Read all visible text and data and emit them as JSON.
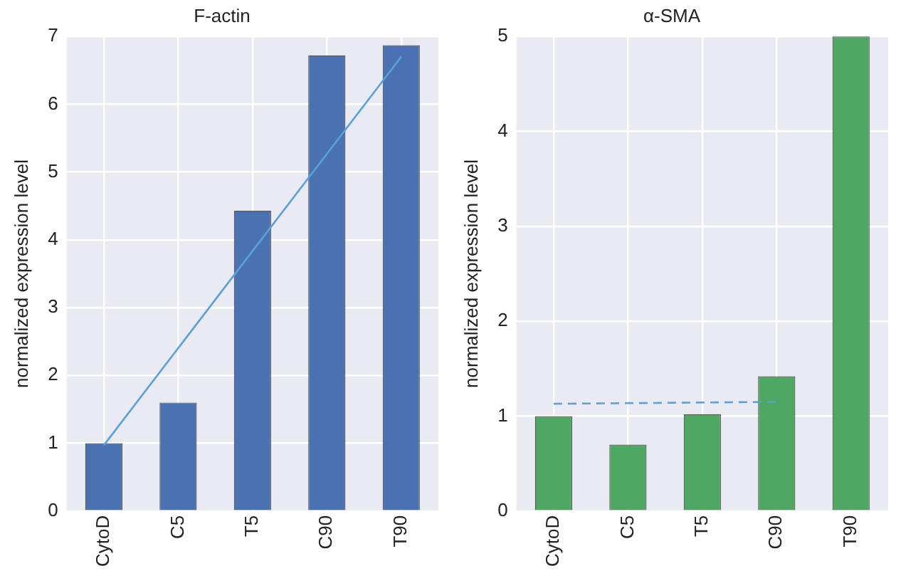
{
  "chart_data": [
    {
      "type": "bar",
      "title": "F-actin",
      "ylabel": "normalized expression level",
      "categories": [
        "CytoD",
        "C5",
        "T5",
        "C90",
        "T90"
      ],
      "series": [
        {
          "color": "#4a71b1",
          "values": [
            1.0,
            1.6,
            4.43,
            6.72,
            6.87
          ]
        },
        {
          "type": "line",
          "color": "#5aa0db",
          "line_style": "solid",
          "values": [
            0.97,
            null,
            null,
            null,
            6.7
          ]
        }
      ],
      "ylim": [
        0,
        7
      ],
      "yticks": [
        0,
        1,
        2,
        3,
        4,
        5,
        6,
        7
      ],
      "grid": true,
      "legend": false
    },
    {
      "type": "bar",
      "title": "α-SMA",
      "ylabel": "normalized expression level",
      "categories": [
        "CytoD",
        "C5",
        "T5",
        "C90",
        "T90"
      ],
      "series": [
        {
          "color": "#4fa764",
          "values": [
            1.0,
            0.7,
            1.02,
            1.42,
            5.0
          ]
        },
        {
          "type": "line",
          "color": "#5aa0db",
          "line_style": "dashed",
          "values": [
            1.13,
            null,
            null,
            1.15,
            null
          ]
        }
      ],
      "ylim": [
        0,
        5
      ],
      "yticks": [
        0,
        1,
        2,
        3,
        4,
        5
      ],
      "grid": true,
      "legend": false
    }
  ]
}
